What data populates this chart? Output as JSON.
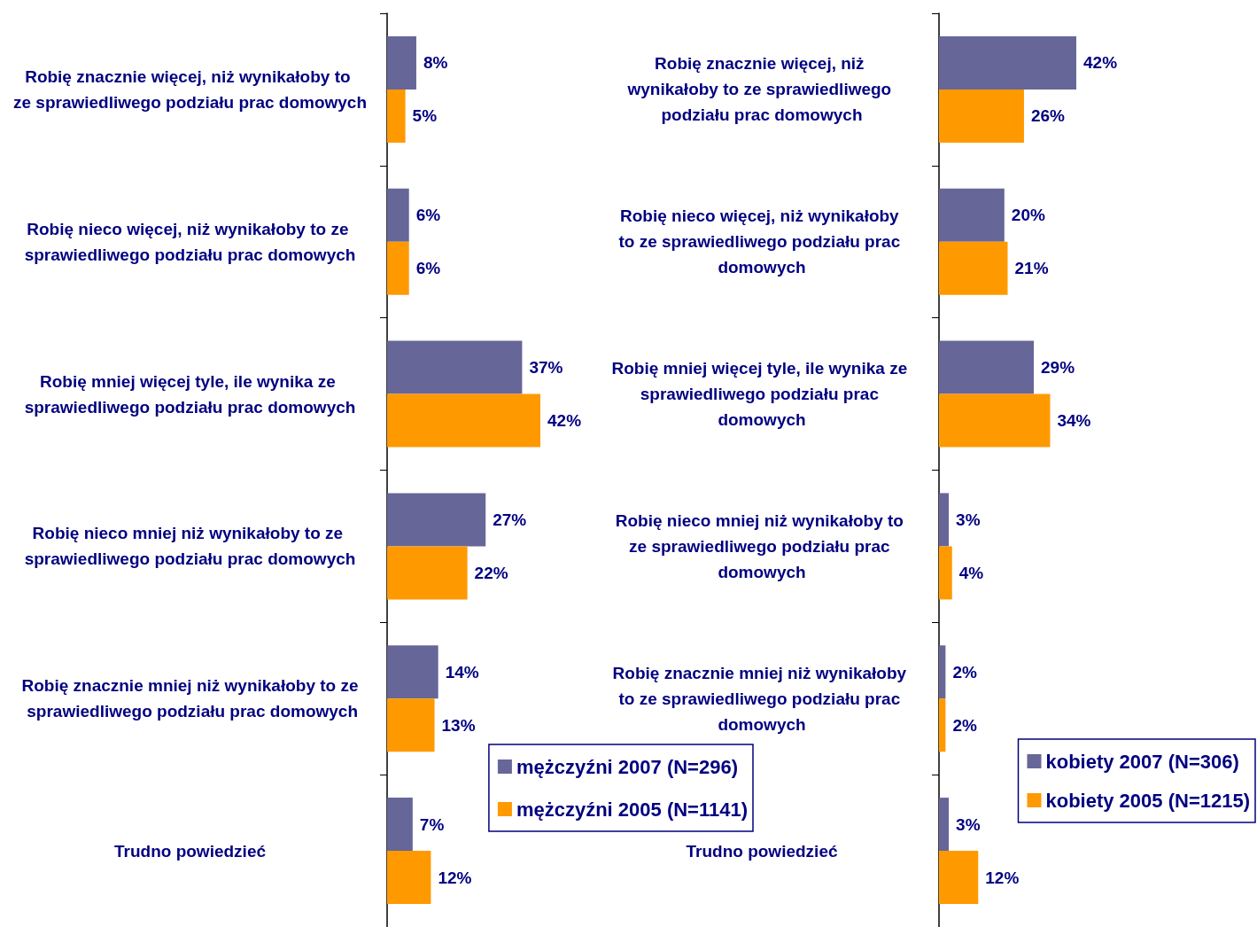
{
  "chart_data": [
    {
      "type": "bar",
      "orientation": "horizontal",
      "legend": "bottom right",
      "categories": [
        "Robię znacznie więcej, niż wynikałoby to ze sprawiedliwego podziału prac domowych",
        "Robię nieco więcej, niż wynikałoby to ze sprawiedliwego podziału prac domowych",
        "Robię mniej więcej tyle, ile wynika ze sprawiedliwego podziału prac domowych",
        "Robię nieco mniej niż wynikałoby to ze sprawiedliwego podziału prac domowych",
        "Robię znacznie mniej niż wynikałoby to ze sprawiedliwego podziału prac domowych",
        "Trudno powiedzieć"
      ],
      "series": [
        {
          "name": "mężczyźni 2007 (N=296)",
          "color": "#666699",
          "values": [
            8,
            6,
            37,
            27,
            14,
            7
          ],
          "value_labels": [
            "8%",
            "6%",
            "37%",
            "27%",
            "14%",
            "7%"
          ]
        },
        {
          "name": "mężczyźni 2005 (N=1141)",
          "color": "#ff9900",
          "values": [
            5,
            6,
            42,
            22,
            13,
            12
          ],
          "value_labels": [
            "5%",
            "6%",
            "42%",
            "22%",
            "13%",
            "12%"
          ]
        }
      ]
    },
    {
      "type": "bar",
      "orientation": "horizontal",
      "legend": "bottom right",
      "categories": [
        "Robię znacznie więcej, niż wynikałoby to ze sprawiedliwego podziału prac domowych",
        "Robię nieco więcej, niż wynikałoby to ze sprawiedliwego podziału prac domowych",
        "Robię mniej więcej tyle, ile wynika ze sprawiedliwego podziału prac domowych",
        "Robię nieco mniej niż wynikałoby to ze sprawiedliwego podziału prac domowych",
        "Robię znacznie mniej niż wynikałoby to ze sprawiedliwego podziału prac domowych",
        "Trudno powiedzieć"
      ],
      "series": [
        {
          "name": "kobiety 2007 (N=306)",
          "color": "#666699",
          "values": [
            42,
            20,
            29,
            3,
            2,
            3
          ],
          "value_labels": [
            "42%",
            "20%",
            "29%",
            "3%",
            "2%",
            "3%"
          ]
        },
        {
          "name": "kobiety 2005 (N=1215)",
          "color": "#ff9900",
          "values": [
            26,
            21,
            34,
            4,
            2,
            12
          ],
          "value_labels": [
            "26%",
            "21%",
            "34%",
            "4%",
            "2%",
            "12%"
          ]
        }
      ]
    }
  ]
}
